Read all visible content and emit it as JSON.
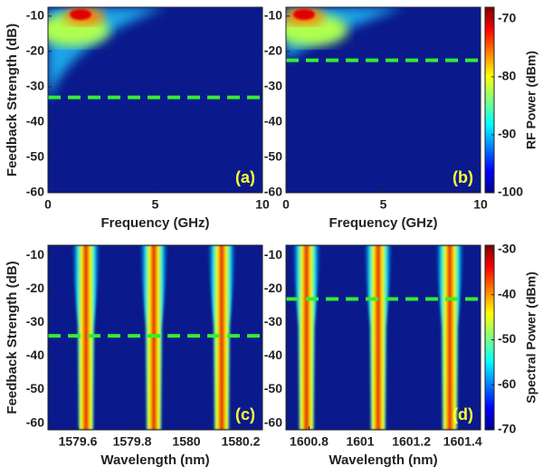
{
  "chart_data": [
    {
      "type": "heatmap",
      "panel_label": "(a)",
      "xlabel": "Frequency (GHz)",
      "ylabel": "Feedback Strength (dB)",
      "xlim": [
        0,
        10
      ],
      "xticks": [
        0,
        5,
        10
      ],
      "ylim": [
        -60,
        -7.5
      ],
      "yticks": [
        -10,
        -20,
        -30,
        -40,
        -50,
        -60
      ],
      "dashed_line": -33
    },
    {
      "type": "heatmap",
      "panel_label": "(b)",
      "xlabel": "Frequency (GHz)",
      "xlim": [
        0,
        10
      ],
      "xticks": [
        0,
        5,
        10
      ],
      "ylim": [
        -60,
        -7.5
      ],
      "yticks": [
        -10,
        -20,
        -30,
        -40,
        -50,
        -60
      ],
      "dashed_line": -22.5
    },
    {
      "type": "heatmap",
      "panel_label": "(c)",
      "xlabel": "Wavelength (nm)",
      "ylabel": "Feedback Strength (dB)",
      "xlim": [
        1579.49,
        1580.28
      ],
      "xticks": [
        1579.6,
        1579.8,
        1580,
        1580.2
      ],
      "ylim": [
        -62,
        -7
      ],
      "yticks": [
        -10,
        -20,
        -30,
        -40,
        -50,
        -60
      ],
      "peaks": [
        1579.63,
        1579.88,
        1580.13
      ],
      "dashed_line": -34
    },
    {
      "type": "heatmap",
      "panel_label": "(d)",
      "xlabel": "Wavelength (nm)",
      "xlim": [
        1600.71,
        1601.47
      ],
      "xticks": [
        1600.8,
        1601,
        1601.2,
        1601.4
      ],
      "ylim": [
        -62,
        -7
      ],
      "yticks": [
        -10,
        -20,
        -30,
        -40,
        -50,
        -60
      ],
      "peaks": [
        1600.79,
        1601.07,
        1601.35
      ],
      "dashed_line": -23
    }
  ],
  "colorbars": [
    {
      "label": "RF Power (dBm)",
      "lim": [
        -100,
        -68
      ],
      "ticks": [
        -70,
        -80,
        -90,
        -100
      ]
    },
    {
      "label": "Spectral Power (dBm)",
      "lim": [
        -70,
        -29
      ],
      "ticks": [
        -30,
        -40,
        -50,
        -60,
        -70
      ]
    }
  ]
}
